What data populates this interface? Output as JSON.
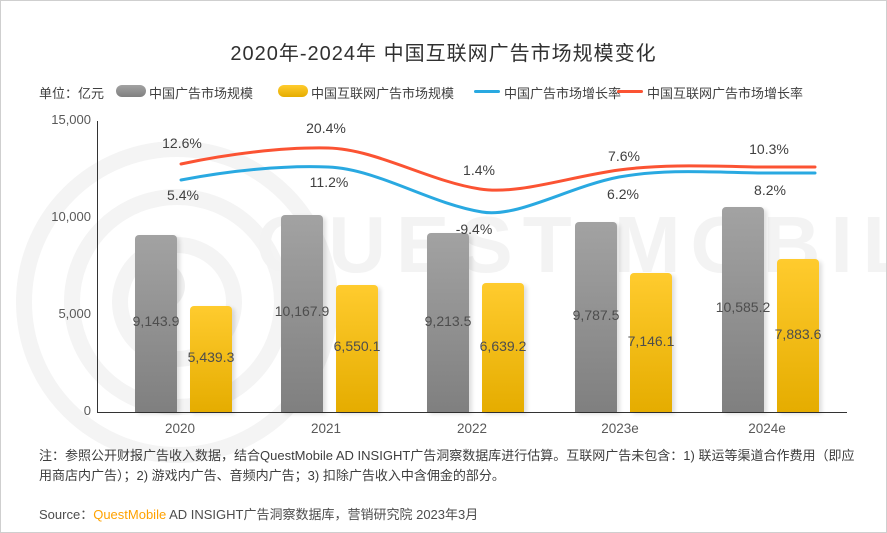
{
  "title": "2020年-2024年 中国互联网广告市场规模变化",
  "unit_label": "单位：亿元",
  "legend": {
    "bar1": "中国广告市场规模",
    "bar2": "中国互联网广告市场规模",
    "line1": "中国广告市场增长率",
    "line2": "中国互联网广告市场增长率"
  },
  "colors": {
    "gray_bar": "#8e8e8e",
    "yellow_bar": "#ffc000",
    "blue_line": "#29a9e1",
    "red_line": "#fb5333",
    "brand_orange": "#ffa200"
  },
  "chart_data": {
    "type": "bar",
    "categories": [
      "2020",
      "2021",
      "2022",
      "2023e",
      "2024e"
    ],
    "series": [
      {
        "name": "中国广告市场规模",
        "type": "bar",
        "color": "#8e8e8e",
        "values": [
          9143.9,
          10167.9,
          9213.5,
          9787.5,
          10585.2
        ],
        "labels": [
          "9,143.9",
          "10,167.9",
          "9,213.5",
          "9,787.5",
          "10,585.2"
        ]
      },
      {
        "name": "中国互联网广告市场规模",
        "type": "bar",
        "color": "#ffc000",
        "values": [
          5439.3,
          6550.1,
          6639.2,
          7146.1,
          7883.6
        ],
        "labels": [
          "5,439.3",
          "6,550.1",
          "6,639.2",
          "7,146.1",
          "7,883.6"
        ]
      },
      {
        "name": "中国广告市场增长率",
        "type": "line",
        "color": "#29a9e1",
        "values": [
          5.4,
          11.2,
          -9.4,
          6.2,
          8.2
        ],
        "labels": [
          "5.4%",
          "11.2%",
          "-9.4%",
          "6.2%",
          "8.2%"
        ]
      },
      {
        "name": "中国互联网广告市场增长率",
        "type": "line",
        "color": "#fb5333",
        "values": [
          12.6,
          20.4,
          1.4,
          7.6,
          10.3
        ],
        "labels": [
          "12.6%",
          "20.4%",
          "1.4%",
          "7.6%",
          "10.3%"
        ]
      }
    ],
    "ylabel": "亿元",
    "ylim": [
      0,
      15000
    ],
    "yticks": [
      "0",
      "5,000",
      "10,000",
      "15,000"
    ],
    "legend_position": "top",
    "grid": false
  },
  "watermark": "QUEST MOBILE",
  "note": "注：参照公开财报广告收入数据，结合QuestMobile AD INSIGHT广告洞察数据库进行估算。互联网广告未包含：1) 联运等渠道合作费用（即应用商店内广告）；2) 游戏内广告、音频内广告；3) 扣除广告收入中含佣金的部分。",
  "source": {
    "prefix": "Source：",
    "brand": "QuestMobile",
    "rest": " AD INSIGHT广告洞察数据库，营销研究院 2023年3月"
  }
}
